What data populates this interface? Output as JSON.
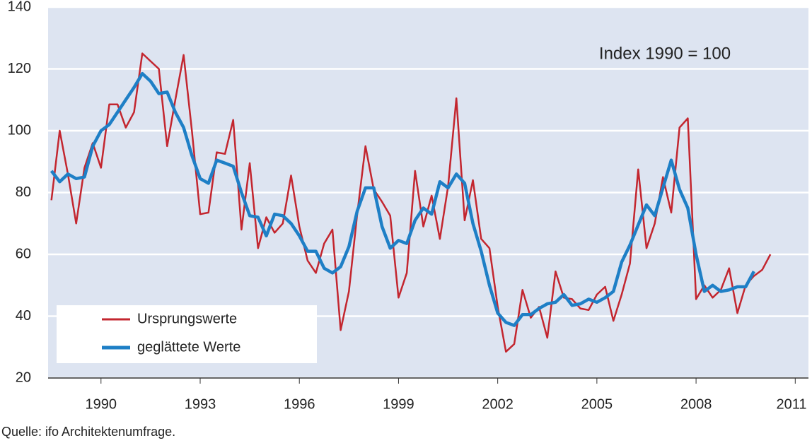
{
  "chart_data": {
    "type": "line",
    "annotation": "Index 1990 = 100",
    "source": "Quelle: ifo Architektenumfrage.",
    "x": [
      1988.5,
      1988.75,
      1989,
      1989.25,
      1989.5,
      1989.75,
      1990,
      1990.25,
      1990.5,
      1990.75,
      1991,
      1991.25,
      1991.5,
      1991.75,
      1992,
      1992.25,
      1992.5,
      1992.75,
      1993,
      1993.25,
      1993.5,
      1993.75,
      1994,
      1994.25,
      1994.5,
      1994.75,
      1995,
      1995.25,
      1995.5,
      1995.75,
      1996,
      1996.25,
      1996.5,
      1996.75,
      1997,
      1997.25,
      1997.5,
      1997.75,
      1998,
      1998.25,
      1998.5,
      1998.75,
      1999,
      1999.25,
      1999.5,
      1999.75,
      2000,
      2000.25,
      2000.5,
      2000.75,
      2001,
      2001.25,
      2001.5,
      2001.75,
      2002,
      2002.25,
      2002.5,
      2002.75,
      2003,
      2003.25,
      2003.5,
      2003.75,
      2004,
      2004.25,
      2004.5,
      2004.75,
      2005,
      2005.25,
      2005.5,
      2005.75,
      2006,
      2006.25,
      2006.5,
      2006.75,
      2007,
      2007.25,
      2007.5,
      2007.75,
      2008,
      2008.25,
      2008.5,
      2008.75,
      2009,
      2009.25,
      2009.5,
      2009.75,
      2010,
      2010.25
    ],
    "series": [
      {
        "name": "Ursprungswerte",
        "color": "#c3262f",
        "values": [
          77.5,
          100,
          86,
          70,
          88,
          96,
          88,
          108.5,
          108.5,
          101,
          106,
          125,
          122.5,
          120,
          95,
          110,
          124.5,
          100,
          73,
          73.5,
          93,
          92.5,
          103.5,
          68,
          89.5,
          62,
          72,
          67,
          70,
          85.5,
          69,
          58,
          54,
          63.5,
          68,
          35.5,
          48,
          73,
          95,
          81,
          77,
          72.5,
          46,
          54,
          87,
          69,
          79,
          65,
          82,
          110.5,
          71,
          84,
          65,
          62,
          43,
          28.5,
          31,
          48.5,
          39.5,
          43,
          33,
          54.5,
          46,
          45.5,
          42.5,
          42,
          47,
          49.5,
          38.5,
          47,
          57,
          87.5,
          62,
          70,
          85,
          73.5,
          101,
          104,
          45.5,
          50,
          46,
          48.5,
          55.5,
          41,
          50,
          53,
          55,
          60
        ]
      },
      {
        "name": "geglättete Werte",
        "color": "#1e7fc6",
        "values": [
          87,
          83.5,
          86,
          84.5,
          85,
          95,
          100,
          102,
          106,
          110,
          114,
          118.5,
          116,
          112,
          112.5,
          106,
          101,
          92,
          84.5,
          83,
          90.5,
          89.5,
          88.5,
          80,
          72.5,
          72,
          66,
          73,
          72.5,
          70,
          66,
          61,
          61,
          55.5,
          54,
          56,
          62.5,
          74,
          81.5,
          81.5,
          69,
          62,
          64.5,
          63.5,
          71,
          75,
          73,
          83.5,
          81.5,
          86,
          83,
          70,
          61,
          50,
          41,
          38,
          37,
          40.5,
          40.5,
          42.5,
          44,
          44.5,
          47,
          43.5,
          44,
          45.5,
          44.5,
          46,
          48,
          57.5,
          63,
          69.5,
          76,
          72.5,
          81.5,
          90.5,
          81,
          75,
          60,
          48,
          50,
          48,
          48.5,
          49.5,
          49.5,
          54.5,
          null,
          null
        ]
      }
    ],
    "xlim": [
      1988.4,
      2011.4
    ],
    "xticks": [
      1990,
      1993,
      1996,
      1999,
      2002,
      2005,
      2008,
      2011
    ],
    "ylim": [
      20,
      140
    ],
    "yticks": [
      20,
      40,
      60,
      80,
      100,
      120,
      140
    ],
    "grid": true,
    "legend": "lower left"
  }
}
